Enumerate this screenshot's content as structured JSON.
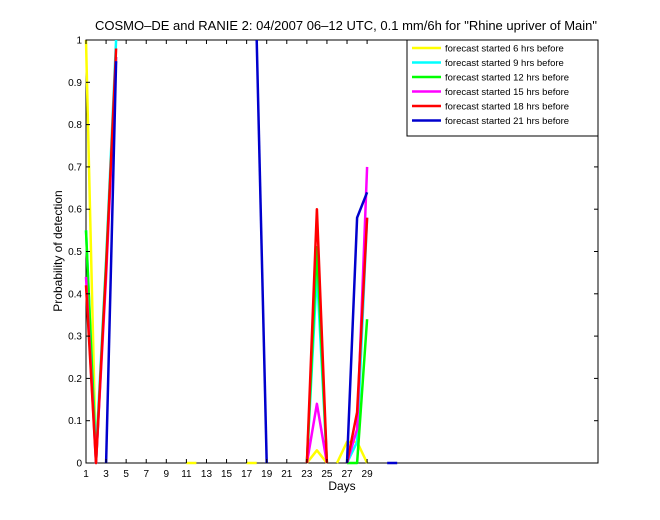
{
  "chart_data": {
    "type": "line",
    "title": "COSMO–DE and RANIE 2: 04/2007 06–12 UTC, 0.1 mm/6h for \"Rhine upriver of Main\"",
    "xlabel": "Days",
    "ylabel": "Probability of detection",
    "xlim": [
      1,
      52
    ],
    "ylim": [
      0,
      1
    ],
    "xticks": [
      1,
      3,
      5,
      7,
      9,
      11,
      13,
      15,
      17,
      19,
      21,
      23,
      25,
      27,
      29
    ],
    "yticks": [
      0,
      0.1,
      0.2,
      0.3,
      0.4,
      0.5,
      0.6,
      0.7,
      0.8,
      0.9,
      1
    ],
    "ytick_labels": [
      "0",
      "0.1",
      "0.2",
      "0.3",
      "0.4",
      "0.5",
      "0.6",
      "0.7",
      "0.8",
      "0.9",
      "1"
    ],
    "legend_position": "top-right",
    "grid": false,
    "series": [
      {
        "name": "forecast started 6 hrs before",
        "color": "#ffff00",
        "segments": [
          [
            [
              1,
              1.0
            ],
            [
              2,
              0.0
            ]
          ],
          [
            [
              11,
              0.0
            ],
            [
              12,
              0.0
            ]
          ],
          [
            [
              17,
              0.0
            ],
            [
              18,
              0.0
            ]
          ],
          [
            [
              23,
              0.0
            ],
            [
              24,
              0.03
            ],
            [
              25,
              0.0
            ]
          ],
          [
            [
              26,
              0.0
            ],
            [
              27,
              0.05
            ],
            [
              28,
              0.05
            ],
            [
              29,
              0.0
            ]
          ]
        ]
      },
      {
        "name": "forecast started 9 hrs before",
        "color": "#00ffff",
        "segments": [
          [
            [
              1,
              0.55
            ],
            [
              2,
              0.02
            ],
            [
              3,
              0.48
            ],
            [
              4,
              1.0
            ]
          ],
          [
            [
              23,
              0.0
            ],
            [
              24,
              0.45
            ],
            [
              25,
              0.0
            ]
          ],
          [
            [
              27,
              0.0
            ],
            [
              28,
              0.05
            ],
            [
              29,
              0.58
            ]
          ]
        ]
      },
      {
        "name": "forecast started 12 hrs before",
        "color": "#00ff00",
        "segments": [
          [
            [
              1,
              0.55
            ],
            [
              2,
              0.0
            ],
            [
              3,
              0.47
            ],
            [
              4,
              0.96
            ]
          ],
          [
            [
              23,
              0.0
            ],
            [
              24,
              0.51
            ],
            [
              25,
              0.0
            ]
          ],
          [
            [
              27,
              0.0
            ],
            [
              28,
              0.0
            ],
            [
              29,
              0.34
            ]
          ]
        ]
      },
      {
        "name": "forecast started 15 hrs before",
        "color": "#ff00ff",
        "segments": [
          [
            [
              1,
              0.44
            ],
            [
              2,
              0.0
            ],
            [
              3,
              0.44
            ],
            [
              4,
              0.96
            ]
          ],
          [
            [
              23,
              0.0
            ],
            [
              24,
              0.14
            ],
            [
              25,
              0.0
            ]
          ],
          [
            [
              27,
              0.0
            ],
            [
              28,
              0.08
            ],
            [
              29,
              0.7
            ]
          ]
        ]
      },
      {
        "name": "forecast started 18 hrs before",
        "color": "#ff0000",
        "segments": [
          [
            [
              1,
              0.42
            ],
            [
              2,
              0.0
            ],
            [
              3,
              0.46
            ],
            [
              4,
              0.98
            ]
          ],
          [
            [
              23,
              0.0
            ],
            [
              24,
              0.6
            ],
            [
              25,
              0.0
            ]
          ],
          [
            [
              27,
              0.0
            ],
            [
              28,
              0.12
            ],
            [
              29,
              0.58
            ]
          ]
        ]
      },
      {
        "name": "forecast started 21 hrs before",
        "color": "#0000cd",
        "segments": [
          [
            [
              3,
              0.0
            ],
            [
              4,
              0.95
            ]
          ],
          [
            [
              18,
              1.0
            ],
            [
              19,
              0.0
            ]
          ],
          [
            [
              27,
              0.0
            ],
            [
              28,
              0.58
            ],
            [
              29,
              0.64
            ]
          ],
          [
            [
              31,
              0.0
            ],
            [
              32,
              0.0
            ]
          ]
        ]
      }
    ]
  }
}
